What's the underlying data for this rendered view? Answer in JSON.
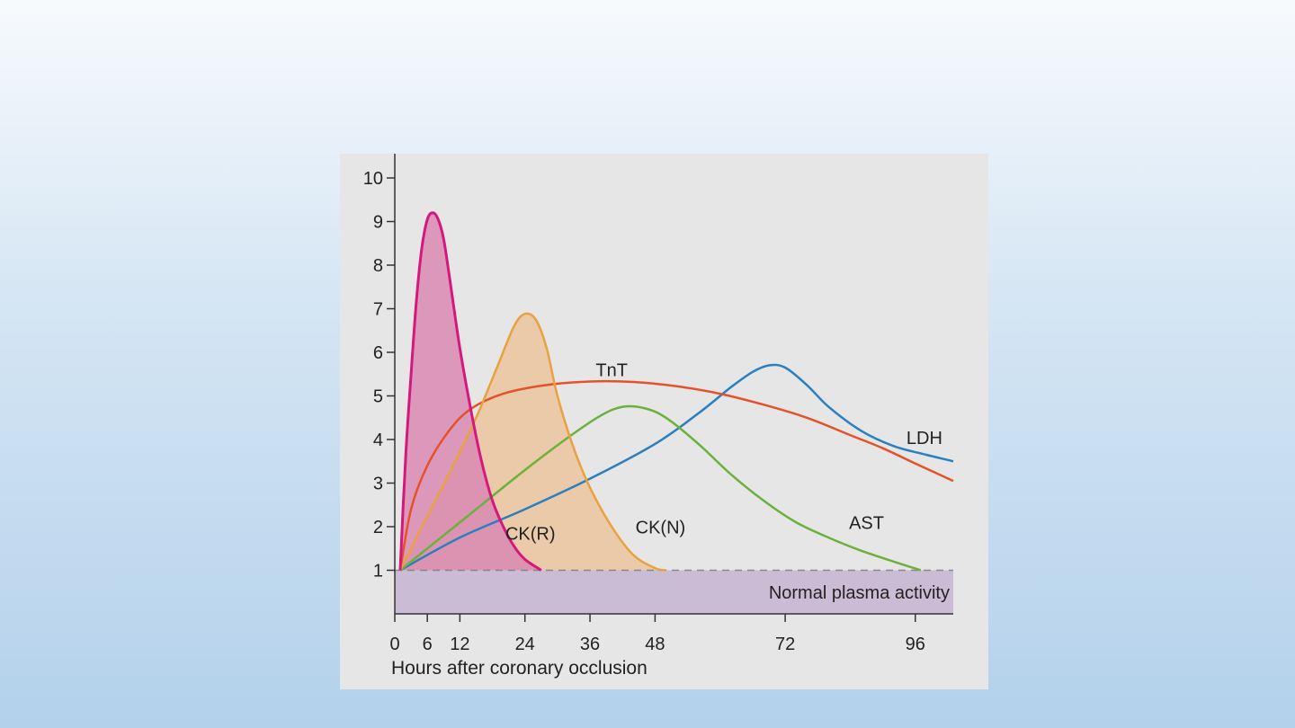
{
  "chart_data": {
    "type": "line",
    "title": "",
    "xlabel": "Hours after coronary occlusion",
    "ylabel": "",
    "xlim": [
      0,
      103
    ],
    "ylim": [
      0,
      10
    ],
    "x_ticks": [
      0,
      6,
      12,
      24,
      36,
      48,
      72,
      96
    ],
    "y_ticks": [
      1,
      2,
      3,
      4,
      5,
      6,
      7,
      8,
      9,
      10
    ],
    "baseline": 1,
    "band_label": "Normal plasma activity",
    "colors": {
      "CK(R)": "#d6187c",
      "CK(N)": "#e8a23e",
      "TnT": "#e5522a",
      "AST": "#6bb13b",
      "LDH": "#2a7fc0",
      "band": "#c9bcd4",
      "ckr_fill": "#d989b3",
      "ckn_fill": "#ebc49e"
    },
    "series": [
      {
        "name": "CK(R)",
        "filled": true,
        "points": [
          [
            1,
            1
          ],
          [
            2,
            3.6
          ],
          [
            3,
            5.5
          ],
          [
            4,
            7.2
          ],
          [
            5,
            8.4
          ],
          [
            6,
            9.05
          ],
          [
            7,
            9.2
          ],
          [
            8,
            9.05
          ],
          [
            9,
            8.6
          ],
          [
            10,
            7.8
          ],
          [
            12,
            6.1
          ],
          [
            14,
            4.7
          ],
          [
            16,
            3.5
          ],
          [
            18,
            2.6
          ],
          [
            20,
            2.0
          ],
          [
            22,
            1.55
          ],
          [
            24,
            1.25
          ],
          [
            27,
            1.0
          ]
        ]
      },
      {
        "name": "CK(N)",
        "filled": true,
        "points": [
          [
            1,
            1
          ],
          [
            5,
            2.0
          ],
          [
            10,
            3.2
          ],
          [
            15,
            4.5
          ],
          [
            19,
            5.7
          ],
          [
            22,
            6.6
          ],
          [
            24,
            6.88
          ],
          [
            26,
            6.75
          ],
          [
            28,
            6.1
          ],
          [
            30,
            5.0
          ],
          [
            33,
            3.8
          ],
          [
            36,
            2.9
          ],
          [
            40,
            2.0
          ],
          [
            44,
            1.35
          ],
          [
            48,
            1.05
          ],
          [
            50,
            1.0
          ]
        ]
      },
      {
        "name": "TnT",
        "filled": false,
        "points": [
          [
            1,
            1
          ],
          [
            3,
            2.4
          ],
          [
            6,
            3.4
          ],
          [
            10,
            4.2
          ],
          [
            14,
            4.7
          ],
          [
            20,
            5.05
          ],
          [
            28,
            5.25
          ],
          [
            36,
            5.33
          ],
          [
            44,
            5.32
          ],
          [
            52,
            5.22
          ],
          [
            60,
            5.05
          ],
          [
            68,
            4.8
          ],
          [
            76,
            4.5
          ],
          [
            84,
            4.1
          ],
          [
            90,
            3.8
          ],
          [
            96,
            3.45
          ],
          [
            103,
            3.05
          ]
        ]
      },
      {
        "name": "AST",
        "filled": false,
        "points": [
          [
            1,
            1
          ],
          [
            8,
            1.7
          ],
          [
            16,
            2.5
          ],
          [
            24,
            3.3
          ],
          [
            32,
            4.05
          ],
          [
            38,
            4.55
          ],
          [
            42,
            4.75
          ],
          [
            46,
            4.72
          ],
          [
            50,
            4.5
          ],
          [
            56,
            3.9
          ],
          [
            62,
            3.2
          ],
          [
            68,
            2.6
          ],
          [
            74,
            2.1
          ],
          [
            80,
            1.75
          ],
          [
            86,
            1.45
          ],
          [
            92,
            1.2
          ],
          [
            97,
            1.0
          ]
        ]
      },
      {
        "name": "LDH",
        "filled": false,
        "points": [
          [
            1,
            1
          ],
          [
            12,
            1.75
          ],
          [
            24,
            2.4
          ],
          [
            36,
            3.1
          ],
          [
            48,
            3.9
          ],
          [
            56,
            4.6
          ],
          [
            62,
            5.2
          ],
          [
            66,
            5.55
          ],
          [
            69,
            5.7
          ],
          [
            72,
            5.65
          ],
          [
            76,
            5.25
          ],
          [
            80,
            4.75
          ],
          [
            86,
            4.2
          ],
          [
            92,
            3.85
          ],
          [
            98,
            3.65
          ],
          [
            103,
            3.5
          ]
        ]
      }
    ],
    "series_labels": [
      {
        "text": "CK(R)",
        "x": 25,
        "y": 1.7
      },
      {
        "text": "CK(N)",
        "x": 49,
        "y": 1.85
      },
      {
        "text": "TnT",
        "x": 40,
        "y": 5.45
      },
      {
        "text": "AST",
        "x": 87,
        "y": 1.95
      },
      {
        "text": "LDH",
        "x": 101,
        "y": 3.9
      }
    ]
  }
}
